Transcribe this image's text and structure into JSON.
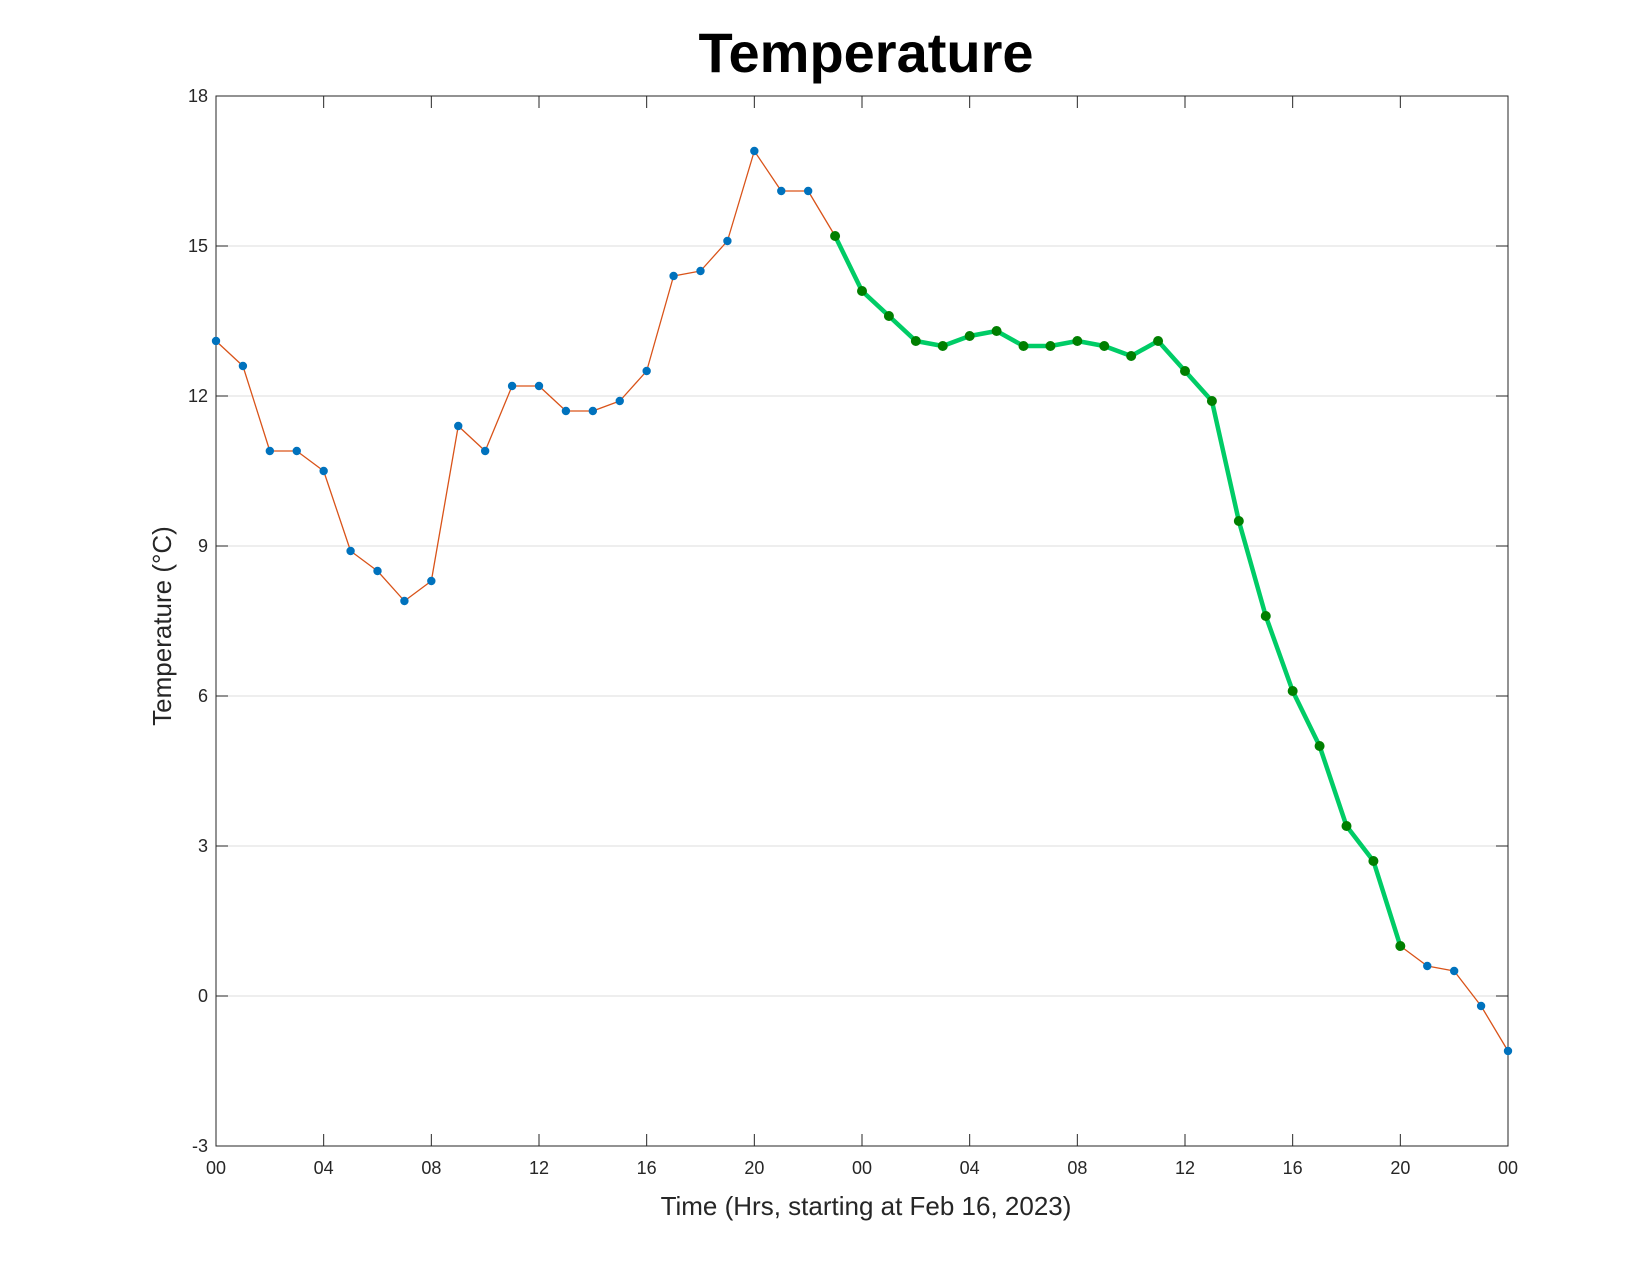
{
  "chart_data": {
    "type": "line",
    "title": "Temperature",
    "xlabel": "Time (Hrs, starting at Feb 16, 2023)",
    "ylabel": "Temperature (°C)",
    "x_unit": "hours",
    "x": [
      0,
      1,
      2,
      3,
      4,
      5,
      6,
      7,
      8,
      9,
      10,
      11,
      12,
      13,
      14,
      15,
      16,
      17,
      18,
      19,
      20,
      21,
      22,
      23,
      24,
      25,
      26,
      27,
      28,
      29,
      30,
      31,
      32,
      33,
      34,
      35,
      36,
      37,
      38,
      39,
      40,
      41,
      42,
      43,
      44,
      45,
      46,
      47,
      48
    ],
    "y": [
      13.1,
      12.6,
      10.9,
      10.9,
      10.5,
      8.9,
      8.5,
      7.9,
      8.3,
      11.4,
      10.9,
      12.2,
      12.2,
      11.7,
      11.7,
      11.9,
      12.5,
      14.4,
      14.5,
      15.1,
      16.9,
      16.1,
      16.1,
      15.2,
      14.1,
      13.6,
      13.1,
      13.0,
      13.2,
      13.3,
      13.0,
      13.0,
      13.1,
      13.0,
      12.8,
      13.1,
      12.5,
      11.9,
      9.5,
      7.6,
      6.1,
      5.0,
      3.4,
      2.7,
      1.0,
      0.6,
      0.5,
      -0.2,
      -1.1
    ],
    "highlight_range": [
      23,
      44
    ],
    "xlim": [
      0,
      48
    ],
    "ylim": [
      -3,
      18
    ],
    "xticks": [
      0,
      4,
      8,
      12,
      16,
      20,
      24,
      28,
      32,
      36,
      40,
      44,
      48
    ],
    "xtick_labels": [
      "00",
      "04",
      "08",
      "12",
      "16",
      "20",
      "00",
      "04",
      "08",
      "12",
      "16",
      "20",
      "00"
    ],
    "yticks": [
      -3,
      0,
      3,
      6,
      9,
      12,
      15,
      18
    ],
    "ytick_labels": [
      "-3",
      "0",
      "3",
      "6",
      "9",
      "12",
      "15",
      "18"
    ],
    "grid": "horizontal",
    "colors": {
      "line": "#D95319",
      "marker": "#0072BD",
      "highlight_line": "#00CC66",
      "highlight_marker": "#007F00",
      "grid": "#DEDEDE",
      "axis": "#262626"
    }
  }
}
